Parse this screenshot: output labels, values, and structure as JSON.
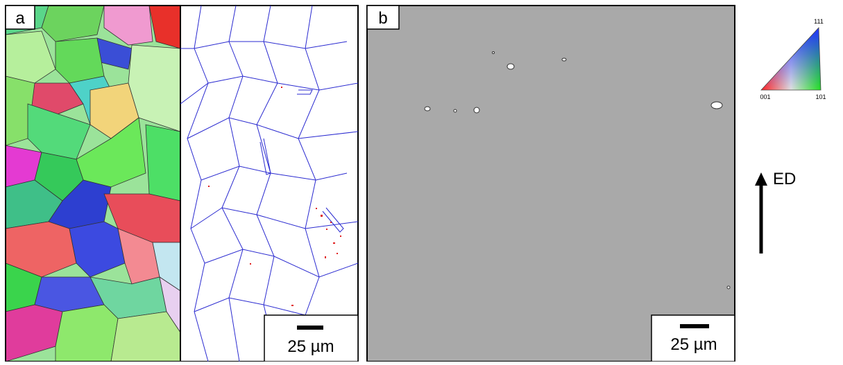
{
  "panels": [
    {
      "label": "a",
      "scale_bar": "25 µm"
    },
    {
      "label": "b",
      "scale_bar": "25 µm"
    }
  ],
  "legend": {
    "corners": [
      "111",
      "001",
      "101"
    ]
  },
  "direction": "ED"
}
